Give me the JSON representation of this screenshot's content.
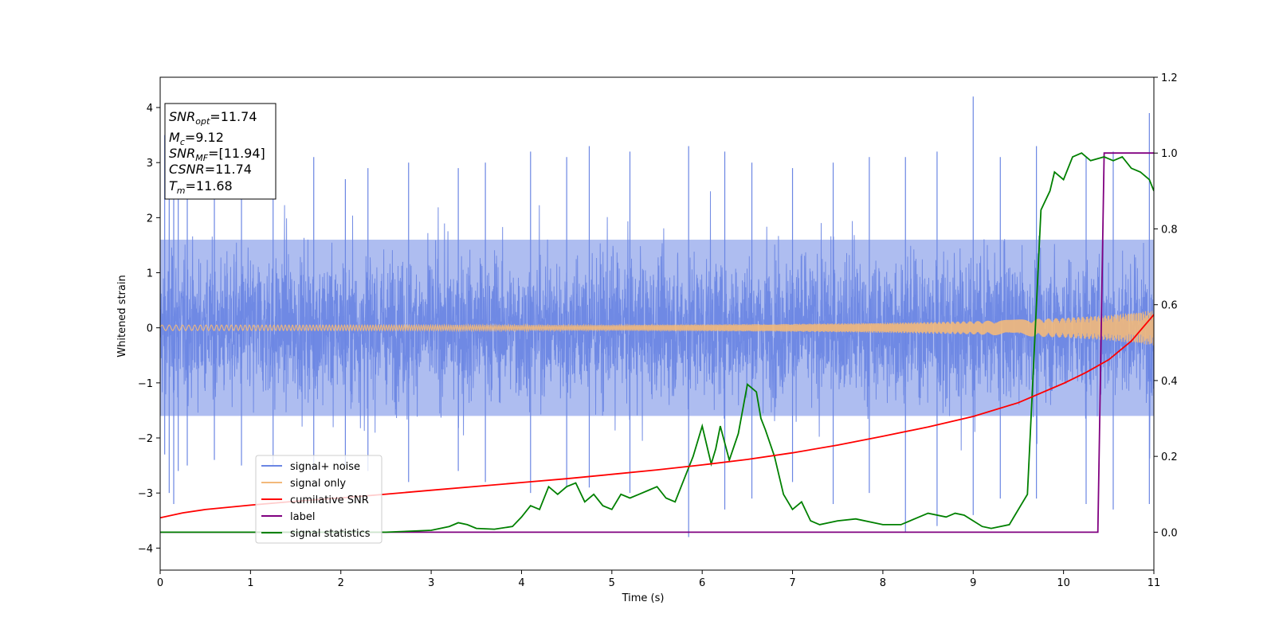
{
  "chart_data": {
    "type": "line",
    "xlabel": "Time (s)",
    "ylabel": "Whitened strain",
    "xlim": [
      0,
      11
    ],
    "ylim": [
      -4.4,
      4.55
    ],
    "y2lim": [
      -0.1,
      1.2
    ],
    "x_ticks": [
      "0",
      "1",
      "2",
      "3",
      "4",
      "5",
      "6",
      "7",
      "8",
      "9",
      "10",
      "11"
    ],
    "y_ticks": [
      "−4",
      "−3",
      "−2",
      "−1",
      "0",
      "1",
      "2",
      "3",
      "4"
    ],
    "y2_ticks": [
      "0.0",
      "0.2",
      "0.4",
      "0.6",
      "0.8",
      "1.0",
      "1.2"
    ],
    "grid": false,
    "legend_position": "lower-left",
    "legend": [
      "signal+ noise",
      "signal only",
      "cumilative SNR",
      "label",
      "signal statistics"
    ],
    "colors": {
      "noise": "#6b86e3",
      "signal": "#f2b97a",
      "csnr": "#ff0000",
      "label": "#800080",
      "stats": "#008000"
    },
    "info_box": {
      "snr_opt": {
        "base": "SNR",
        "sub": "opt",
        "value": "=11.74"
      },
      "mc": {
        "base": "M",
        "sub": "c",
        "value": "=9.12"
      },
      "snr_mf": {
        "base": "SNR",
        "sub": "MF",
        "value": "=[11.94]"
      },
      "csnr": {
        "base": "CSNR",
        "value": "=11.74"
      },
      "tm": {
        "base": "T",
        "sub": "m",
        "value": "=11.68"
      }
    },
    "series": [
      {
        "name": "signal+ noise",
        "axis": "left",
        "description_kind": "noise band",
        "envelope_hi": 1.6,
        "envelope_lo": -1.6,
        "peaks_x": [
          0.05,
          0.1,
          0.15,
          0.2,
          0.3,
          0.6,
          0.9,
          1.25,
          1.7,
          2.05,
          2.3,
          2.75,
          3.3,
          3.6,
          4.1,
          4.5,
          4.75,
          5.2,
          5.85,
          6.25,
          6.55,
          7.0,
          7.45,
          7.85,
          8.25,
          8.6,
          9.0,
          9.3,
          9.7,
          10.25,
          10.55,
          10.95
        ],
        "peaks_hi": [
          3.5,
          2.8,
          3.1,
          3.3,
          2.6,
          2.9,
          2.5,
          2.9,
          3.1,
          2.7,
          2.9,
          3.0,
          2.9,
          3.0,
          3.2,
          3.1,
          3.3,
          3.2,
          3.3,
          3.2,
          3.0,
          2.9,
          3.0,
          3.1,
          3.1,
          3.2,
          4.2,
          3.1,
          3.3,
          3.1,
          3.2,
          3.9
        ],
        "peaks_lo": [
          -2.3,
          -3.0,
          -3.2,
          -2.6,
          -2.5,
          -2.4,
          -2.5,
          -2.5,
          -2.6,
          -2.5,
          -2.6,
          -2.8,
          -2.6,
          -2.8,
          -3.0,
          -2.9,
          -2.9,
          -3.0,
          -3.8,
          -3.3,
          -3.1,
          -2.8,
          -3.2,
          -3.0,
          -3.7,
          -3.6,
          -3.4,
          -3.1,
          -3.1,
          -3.2,
          -3.3,
          -3.2
        ]
      },
      {
        "name": "signal only",
        "axis": "left",
        "x": [
          0,
          1,
          2,
          3,
          4,
          5,
          6,
          7,
          8,
          9,
          10,
          10.5,
          11
        ],
        "amplitude": [
          0.05,
          0.05,
          0.05,
          0.05,
          0.05,
          0.05,
          0.06,
          0.07,
          0.09,
          0.12,
          0.18,
          0.23,
          0.32
        ]
      },
      {
        "name": "cumilative SNR",
        "axis": "left",
        "x": [
          0,
          0.25,
          0.5,
          1,
          1.5,
          2,
          2.5,
          3,
          3.5,
          4,
          4.5,
          5,
          5.5,
          6,
          6.5,
          7,
          7.5,
          8,
          8.5,
          9,
          9.5,
          10,
          10.25,
          10.5,
          10.75,
          11
        ],
        "y": [
          -3.45,
          -3.36,
          -3.3,
          -3.22,
          -3.15,
          -3.09,
          -3.02,
          -2.95,
          -2.88,
          -2.81,
          -2.74,
          -2.66,
          -2.58,
          -2.49,
          -2.39,
          -2.27,
          -2.13,
          -1.97,
          -1.8,
          -1.61,
          -1.36,
          -1.01,
          -0.81,
          -0.58,
          -0.24,
          0.24
        ]
      },
      {
        "name": "label",
        "axis": "right",
        "x": [
          0,
          10.38,
          10.45,
          11
        ],
        "y": [
          0.0,
          0.0,
          1.0,
          1.0
        ]
      },
      {
        "name": "signal statistics",
        "axis": "right",
        "x": [
          0,
          2.5,
          3.0,
          3.2,
          3.3,
          3.4,
          3.5,
          3.7,
          3.9,
          4.0,
          4.1,
          4.2,
          4.3,
          4.4,
          4.5,
          4.6,
          4.7,
          4.8,
          4.9,
          5.0,
          5.1,
          5.2,
          5.3,
          5.4,
          5.5,
          5.6,
          5.7,
          5.8,
          5.9,
          6.0,
          6.1,
          6.15,
          6.2,
          6.3,
          6.4,
          6.5,
          6.6,
          6.65,
          6.7,
          6.8,
          6.9,
          7.0,
          7.1,
          7.2,
          7.3,
          7.5,
          7.7,
          8.0,
          8.2,
          8.4,
          8.5,
          8.7,
          8.8,
          8.9,
          9.0,
          9.1,
          9.2,
          9.4,
          9.6,
          9.75,
          9.85,
          9.9,
          10.0,
          10.1,
          10.2,
          10.3,
          10.45,
          10.55,
          10.65,
          10.75,
          10.85,
          10.95,
          11
        ],
        "y": [
          0.0,
          0.0,
          0.005,
          0.015,
          0.025,
          0.02,
          0.01,
          0.008,
          0.015,
          0.04,
          0.07,
          0.06,
          0.12,
          0.1,
          0.12,
          0.13,
          0.08,
          0.1,
          0.07,
          0.06,
          0.1,
          0.09,
          0.1,
          0.11,
          0.12,
          0.09,
          0.08,
          0.14,
          0.2,
          0.28,
          0.18,
          0.22,
          0.28,
          0.19,
          0.26,
          0.39,
          0.37,
          0.3,
          0.27,
          0.2,
          0.1,
          0.06,
          0.08,
          0.03,
          0.02,
          0.03,
          0.035,
          0.02,
          0.02,
          0.04,
          0.05,
          0.04,
          0.05,
          0.045,
          0.03,
          0.015,
          0.01,
          0.02,
          0.1,
          0.85,
          0.9,
          0.95,
          0.93,
          0.99,
          1.0,
          0.98,
          0.99,
          0.98,
          0.99,
          0.96,
          0.95,
          0.93,
          0.9
        ]
      }
    ]
  }
}
